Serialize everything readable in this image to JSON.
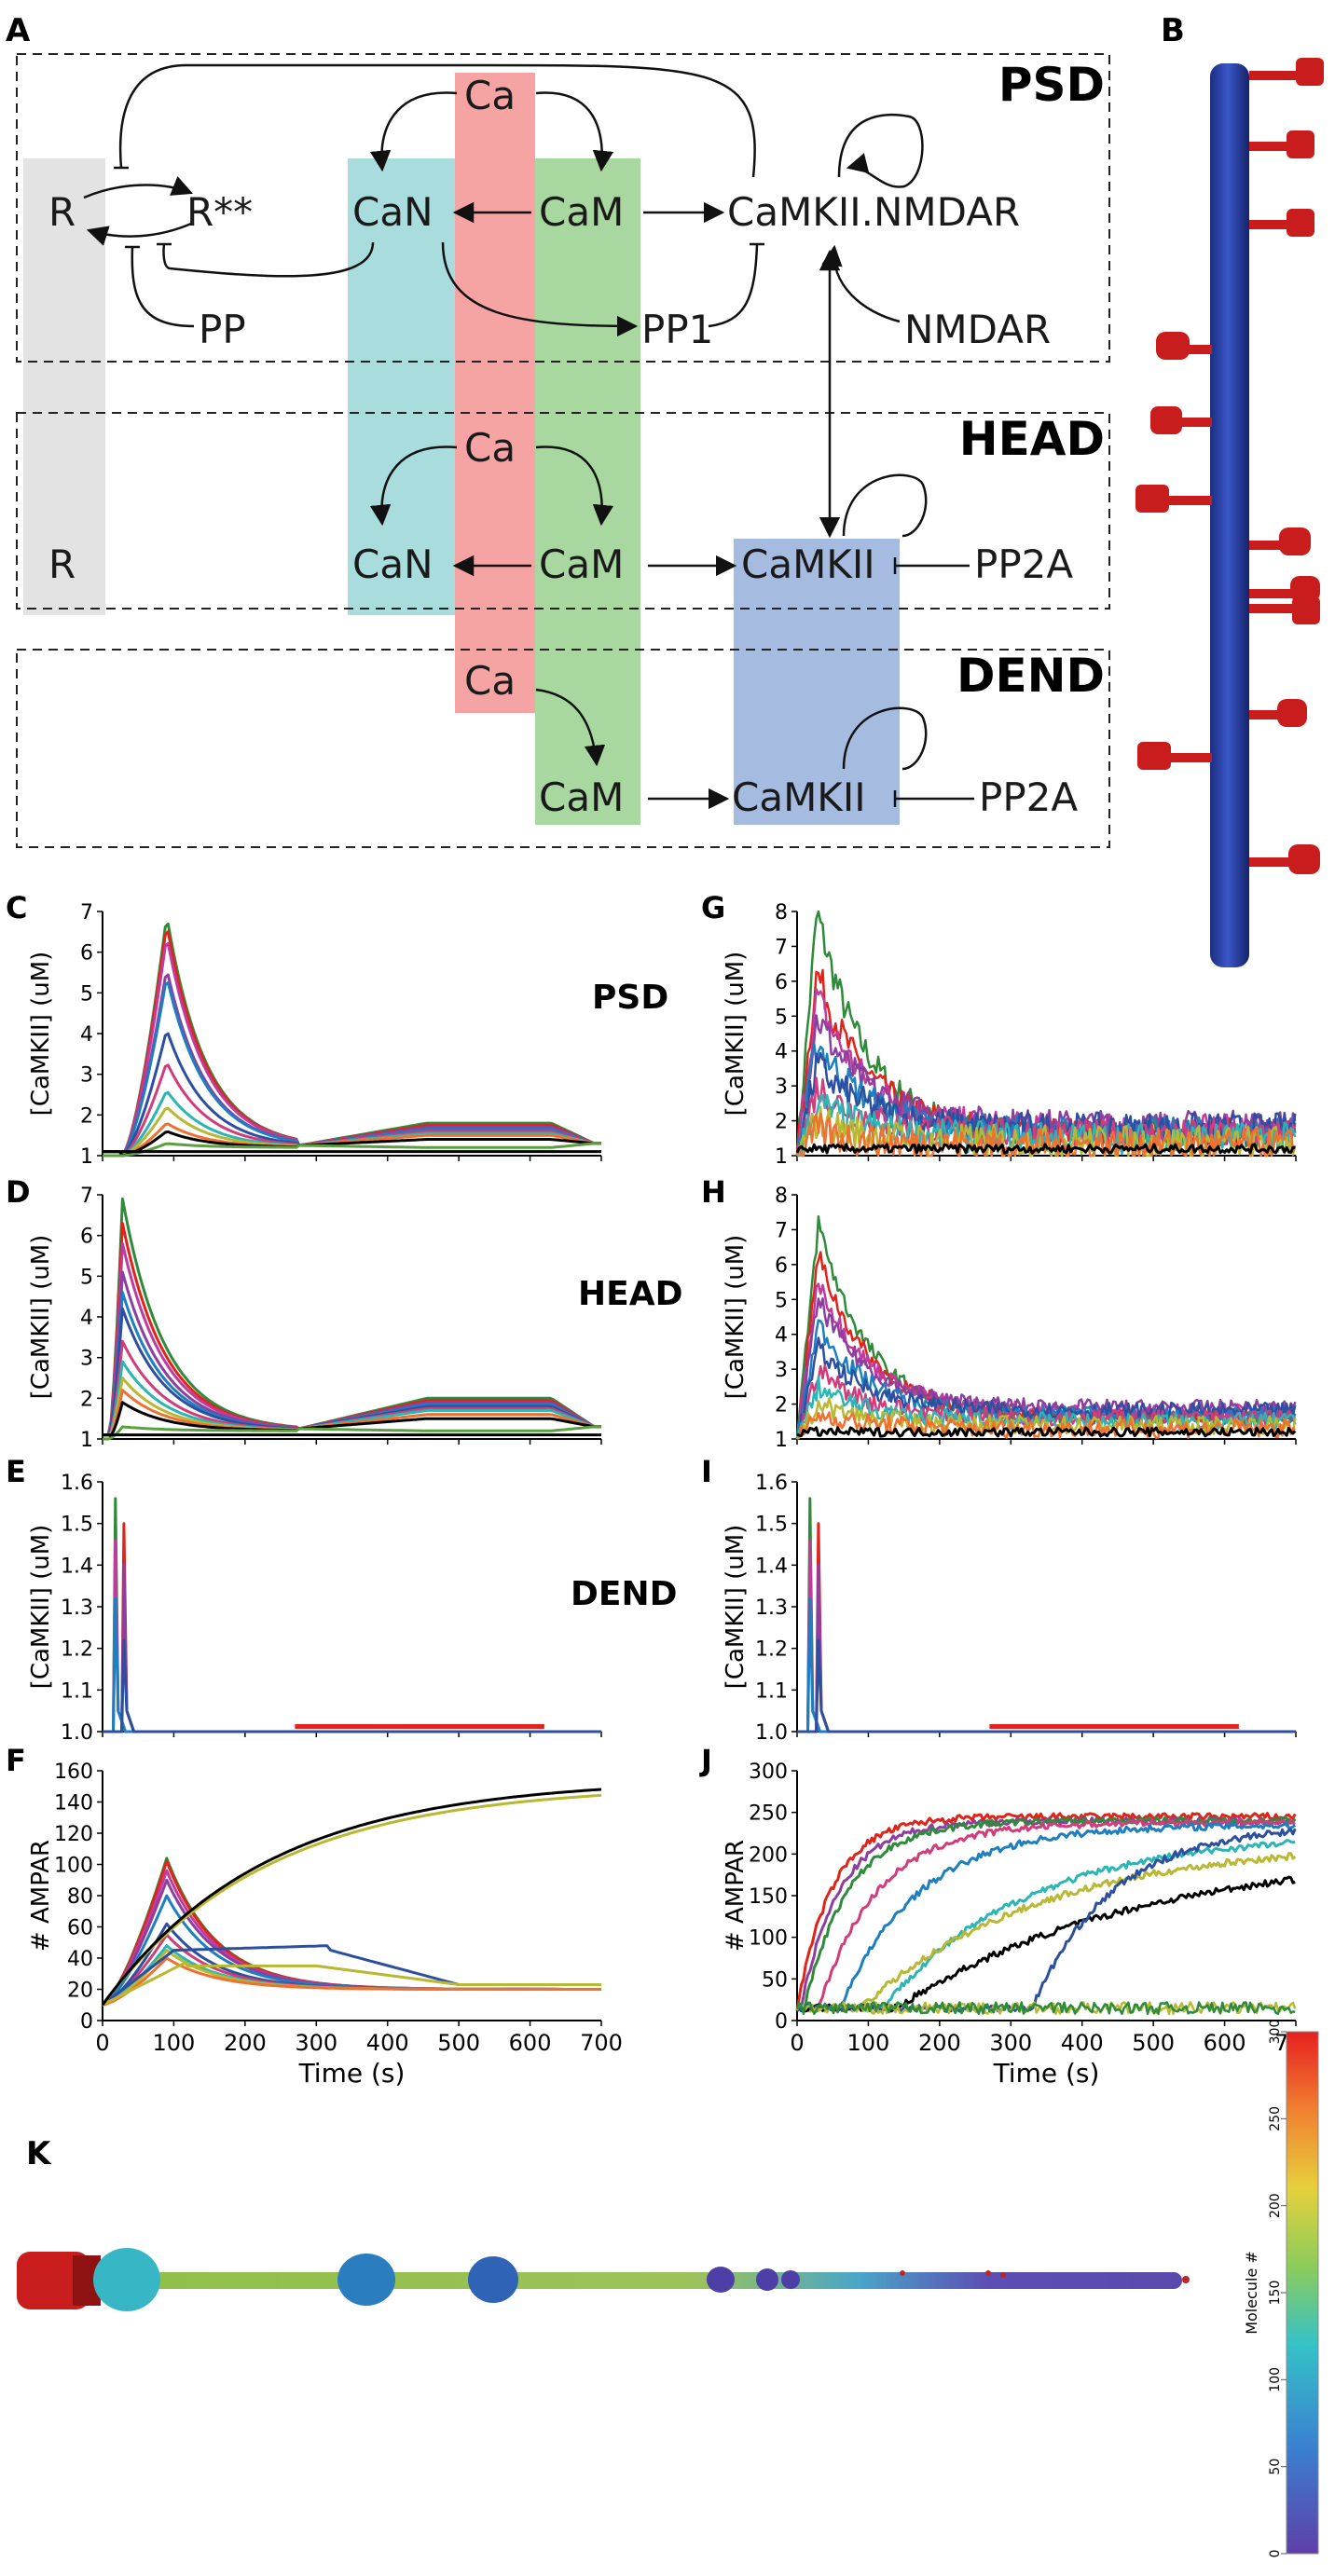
{
  "panel_letters": {
    "a": "A",
    "b": "B",
    "c": "C",
    "d": "D",
    "e": "E",
    "f": "F",
    "g": "G",
    "h": "H",
    "i": "I",
    "j": "J",
    "k": "K"
  },
  "diagram": {
    "compartments": {
      "psd": "PSD",
      "head": "HEAD",
      "dend": "DEND"
    },
    "psd_nodes": {
      "r": "R",
      "r_star": "R**",
      "ca": "Ca",
      "can": "CaN",
      "cam": "CaM",
      "camkii_nmdar": "CaMKII.NMDAR",
      "pp": "PP",
      "pp1": "PP1",
      "nmdar": "NMDAR"
    },
    "head_nodes": {
      "r": "R",
      "ca": "Ca",
      "can": "CaN",
      "cam": "CaM",
      "camkii": "CaMKII",
      "pp2a": "PP2A"
    },
    "dend_nodes": {
      "ca": "Ca",
      "cam": "CaM",
      "camkii": "CaMKII",
      "pp2a": "PP2A"
    },
    "colors": {
      "r_band": "#e3e3e3",
      "can_band": "#a9dcdc",
      "ca_band": "#f5a3a3",
      "cam_band": "#a8d8a0",
      "camkii_band": "#a5bce0"
    }
  },
  "row_labels": {
    "psd": "PSD",
    "head": "HEAD",
    "dend": "DEND"
  },
  "chart_data": [
    {
      "panel": "C",
      "type": "line",
      "compartment": "PSD",
      "ylabel": "[CaMKII] (uM)",
      "ylim": [
        1,
        7
      ],
      "yticks": [
        "1",
        "2",
        "3",
        "4",
        "5",
        "6",
        "7"
      ],
      "xlim": [
        0,
        700
      ],
      "peaks": [
        6.9,
        6.7,
        6.4,
        5.6,
        5.4,
        4.1,
        3.3,
        2.6,
        2.2,
        1.8,
        1.6,
        1.3
      ],
      "plateau": [
        1.8,
        1.75,
        1.7,
        1.7,
        1.65,
        1.6,
        1.6,
        1.55,
        1.5,
        1.5,
        1.4,
        1.2
      ]
    },
    {
      "panel": "D",
      "type": "line",
      "compartment": "HEAD",
      "ylabel": "[CaMKII] (uM)",
      "ylim": [
        1,
        7
      ],
      "yticks": [
        "1",
        "2",
        "3",
        "4",
        "5",
        "6",
        "7"
      ],
      "xlim": [
        0,
        700
      ],
      "peaks": [
        6.9,
        6.3,
        5.8,
        5.1,
        4.6,
        4.2,
        3.4,
        2.9,
        2.5,
        2.2,
        1.9,
        1.3
      ],
      "plateau": [
        2.0,
        1.95,
        1.9,
        1.9,
        1.85,
        1.8,
        1.75,
        1.7,
        1.6,
        1.6,
        1.5,
        1.2
      ]
    },
    {
      "panel": "E",
      "type": "line",
      "compartment": "DEND",
      "ylabel": "[CaMKII] (uM)",
      "ylim": [
        1,
        1.6
      ],
      "yticks": [
        "1.0",
        "1.1",
        "1.2",
        "1.3",
        "1.4",
        "1.5",
        "1.6"
      ],
      "xlim": [
        0,
        700
      ],
      "peaks": [
        1.56,
        1.5,
        1.46,
        1.4,
        1.32,
        1.22
      ]
    },
    {
      "panel": "F",
      "type": "line",
      "ylabel": "# AMPAR",
      "xlabel": "Time (s)",
      "ylim": [
        0,
        160
      ],
      "yticks": [
        "0",
        "20",
        "40",
        "60",
        "80",
        "100",
        "120",
        "140",
        "160"
      ],
      "xlim": [
        0,
        700
      ],
      "xticks": [
        "0",
        "100",
        "200",
        "300",
        "400",
        "500",
        "600",
        "700"
      ]
    },
    {
      "panel": "G",
      "type": "line",
      "compartment": "PSD",
      "ylabel": "[CaMKII] (uM)",
      "ylim": [
        1,
        8
      ],
      "yticks": [
        "1",
        "2",
        "3",
        "4",
        "5",
        "6",
        "7",
        "8"
      ],
      "xlim": [
        0,
        700
      ]
    },
    {
      "panel": "H",
      "type": "line",
      "compartment": "HEAD",
      "ylabel": "[CaMKII] (uM)",
      "ylim": [
        1,
        8
      ],
      "yticks": [
        "1",
        "2",
        "3",
        "4",
        "5",
        "6",
        "7",
        "8"
      ],
      "xlim": [
        0,
        700
      ]
    },
    {
      "panel": "I",
      "type": "line",
      "compartment": "DEND",
      "ylabel": "[CaMKII] (uM)",
      "ylim": [
        1,
        1.6
      ],
      "yticks": [
        "1.0",
        "1.1",
        "1.2",
        "1.3",
        "1.4",
        "1.5",
        "1.6"
      ],
      "xlim": [
        0,
        700
      ]
    },
    {
      "panel": "J",
      "type": "line",
      "ylabel": "# AMPAR",
      "xlabel": "Time (s)",
      "ylim": [
        0,
        300
      ],
      "yticks": [
        "0",
        "50",
        "100",
        "150",
        "200",
        "250",
        "300"
      ],
      "xlim": [
        0,
        700
      ],
      "xticks": [
        "0",
        "100",
        "200",
        "300",
        "400",
        "500",
        "600",
        "700"
      ]
    }
  ],
  "series_colors": [
    "#2e8b3a",
    "#e2231a",
    "#c13b9e",
    "#8d3fa0",
    "#1d7fc0",
    "#2d4fa0",
    "#d23c7a",
    "#2bb5b5",
    "#b8b832",
    "#f07030",
    "#000000",
    "#5aa040"
  ],
  "colorbar": {
    "label": "Molecule #",
    "ticks": [
      "0",
      "50",
      "100",
      "150",
      "200",
      "250",
      "300"
    ],
    "min": 0,
    "max": 300
  }
}
